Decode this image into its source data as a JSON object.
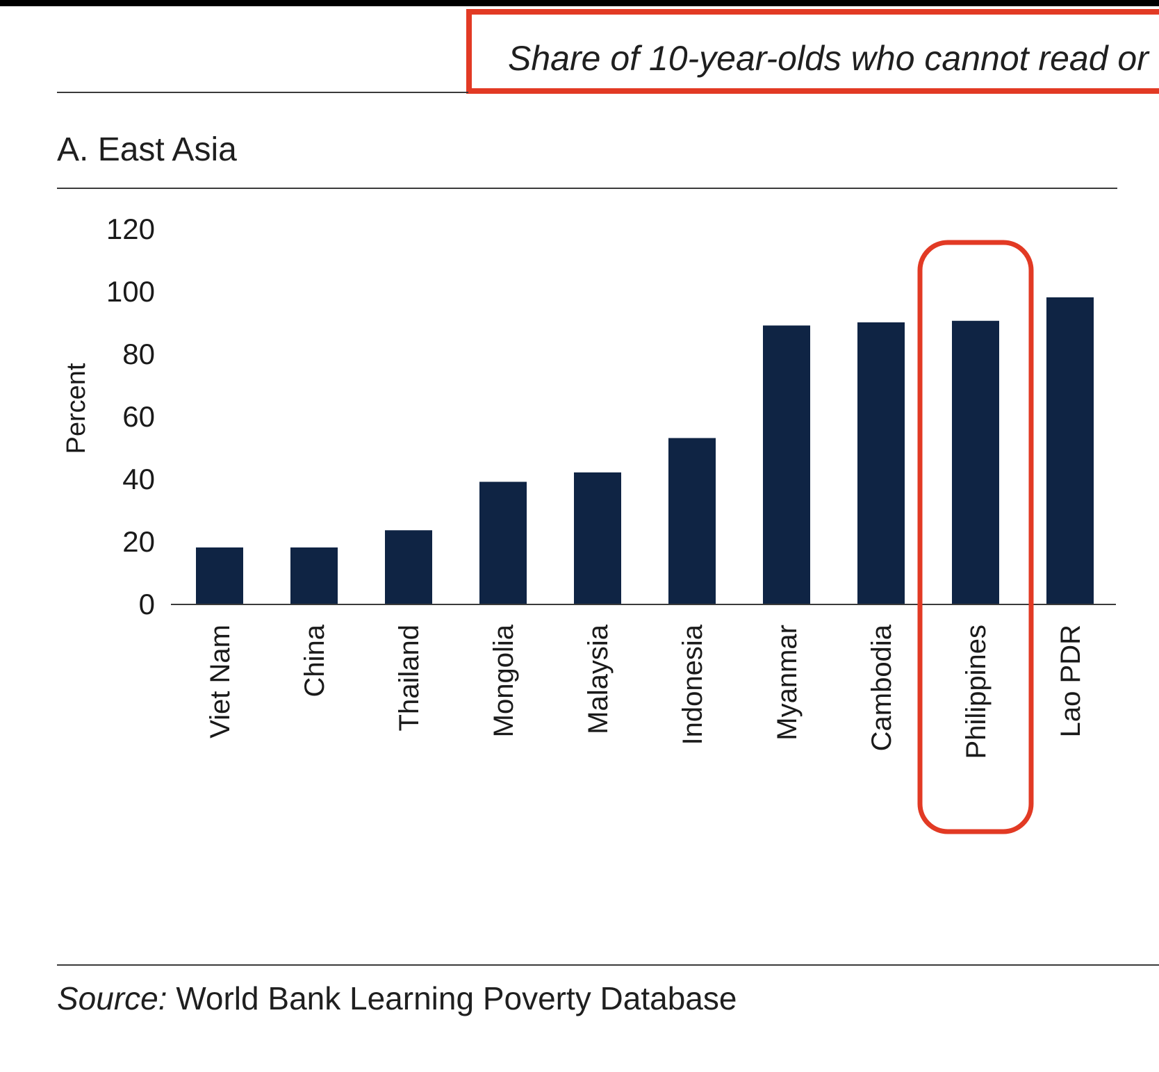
{
  "headline": {
    "text": "Share of 10-year-olds who cannot read or"
  },
  "panel": {
    "title": "A. East Asia"
  },
  "source": {
    "label": "Source:",
    "text": "World Bank Learning Poverty Database"
  },
  "colors": {
    "bar": "#0f2444",
    "highlight": "#e23a24",
    "axis": "#3a3a3a"
  },
  "chart_data": {
    "type": "bar",
    "title": "A. East Asia",
    "ylabel": "Percent",
    "xlabel": "",
    "ylim": [
      0,
      120
    ],
    "yticks": [
      0,
      20,
      40,
      60,
      80,
      100,
      120
    ],
    "categories": [
      "Viet Nam",
      "China",
      "Thailand",
      "Mongolia",
      "Malaysia",
      "Indonesia",
      "Myanmar",
      "Cambodia",
      "Philippines",
      "Lao PDR"
    ],
    "values": [
      18,
      18,
      23.5,
      39,
      42,
      53,
      89,
      90,
      90.5,
      98
    ],
    "highlighted_category": "Philippines",
    "grid": false
  }
}
